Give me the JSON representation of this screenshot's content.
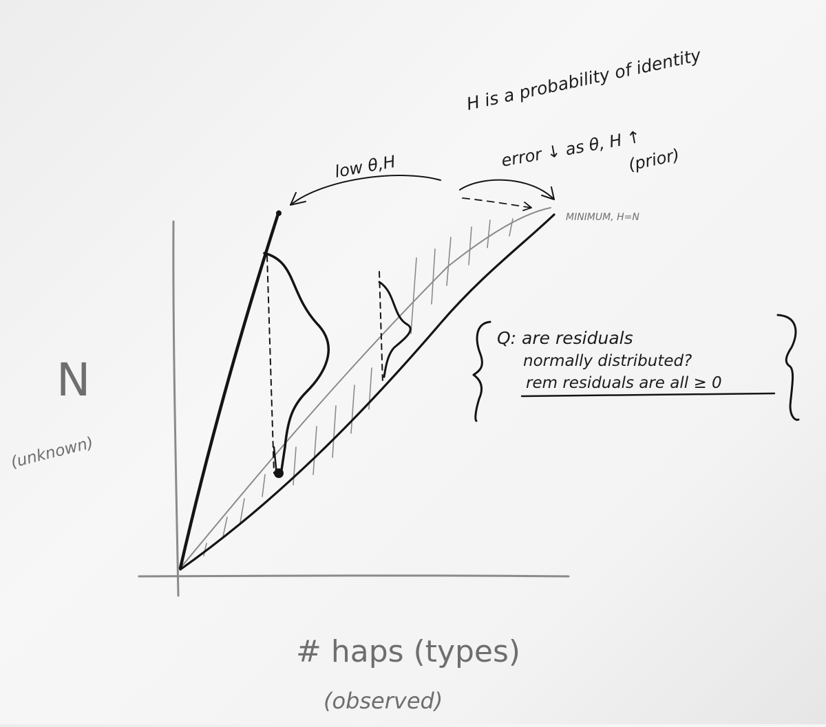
{
  "notes": {
    "h_definition": "H is a probability of identity",
    "error_note": "error ↓ as θ, H ↑",
    "prior": "(prior)",
    "low_label": "low θ,H",
    "minimum_label": "MINIMUM, H=N",
    "question_line1": "Q: are residuals",
    "question_line2": "normally distributed?",
    "question_line3": "rem residuals are all ≥ 0"
  },
  "axes": {
    "y_label": "N",
    "y_sublabel": "(unknown)",
    "x_label": "# haps (types)",
    "x_sublabel": "(observed)"
  },
  "colors": {
    "ink": "#141414",
    "faint_ink": "#8a8a8a",
    "board": "#f3f3f3"
  }
}
